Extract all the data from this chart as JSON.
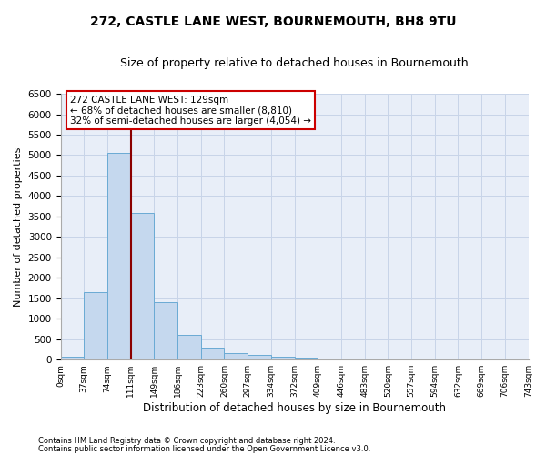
{
  "title1": "272, CASTLE LANE WEST, BOURNEMOUTH, BH8 9TU",
  "title2": "Size of property relative to detached houses in Bournemouth",
  "xlabel": "Distribution of detached houses by size in Bournemouth",
  "ylabel": "Number of detached properties",
  "footer1": "Contains HM Land Registry data © Crown copyright and database right 2024.",
  "footer2": "Contains public sector information licensed under the Open Government Licence v3.0.",
  "bar_values": [
    70,
    1650,
    5060,
    3580,
    1400,
    610,
    290,
    150,
    120,
    80,
    60,
    0,
    0,
    0,
    0,
    0,
    0,
    0,
    0,
    0
  ],
  "bin_labels": [
    "0sqm",
    "37sqm",
    "74sqm",
    "111sqm",
    "149sqm",
    "186sqm",
    "223sqm",
    "260sqm",
    "297sqm",
    "334sqm",
    "372sqm",
    "409sqm",
    "446sqm",
    "483sqm",
    "520sqm",
    "557sqm",
    "594sqm",
    "632sqm",
    "669sqm",
    "706sqm",
    "743sqm"
  ],
  "bar_color": "#c5d8ee",
  "bar_edge_color": "#6aaad4",
  "vline_x": 3,
  "vline_color": "#8b0000",
  "annotation_line1": "272 CASTLE LANE WEST: 129sqm",
  "annotation_line2": "← 68% of detached houses are smaller (8,810)",
  "annotation_line3": "32% of semi-detached houses are larger (4,054) →",
  "box_edge_color": "#cc0000",
  "annotation_fontsize": 7.5,
  "ylim": [
    0,
    6500
  ],
  "yticks": [
    0,
    500,
    1000,
    1500,
    2000,
    2500,
    3000,
    3500,
    4000,
    4500,
    5000,
    5500,
    6000,
    6500
  ],
  "grid_color": "#c8d4e8",
  "background_color": "#e8eef8",
  "title1_fontsize": 10,
  "title2_fontsize": 9,
  "xlabel_fontsize": 8.5,
  "ylabel_fontsize": 8
}
